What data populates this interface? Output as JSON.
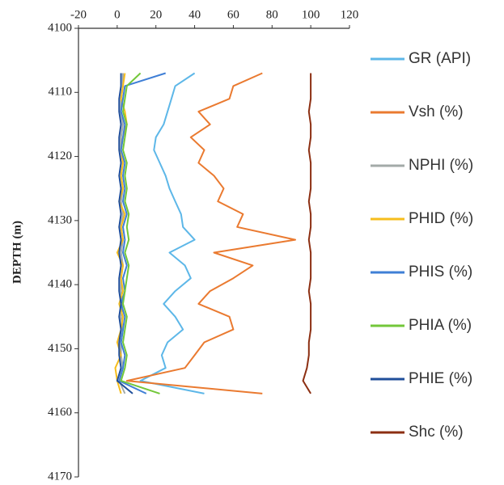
{
  "chart_data": {
    "type": "depth-log",
    "y_label": "DEPTH (m)",
    "depth": [
      4107,
      4109,
      4111,
      4113,
      4115,
      4117,
      4119,
      4121,
      4123,
      4125,
      4127,
      4129,
      4131,
      4133,
      4135,
      4137,
      4139,
      4141,
      4143,
      4145,
      4147,
      4149,
      4151,
      4153,
      4155,
      4157
    ],
    "series": [
      {
        "name": "GR (API)",
        "color": "#5db7e8",
        "values": [
          40,
          30,
          28,
          26,
          24,
          20,
          19,
          22,
          25,
          27,
          30,
          33,
          34,
          40,
          27,
          35,
          38,
          30,
          24,
          30,
          34,
          26,
          23,
          25,
          12,
          45
        ]
      },
      {
        "name": "Vsh (%)",
        "color": "#ea7a30",
        "values": [
          75,
          60,
          58,
          42,
          48,
          38,
          45,
          42,
          50,
          55,
          52,
          65,
          62,
          92,
          50,
          70,
          60,
          48,
          42,
          58,
          60,
          45,
          40,
          35,
          5,
          75
        ]
      },
      {
        "name": "NPHI (%)",
        "color": "#a3aaa8",
        "values": [
          3,
          3,
          2,
          2,
          3,
          2,
          2,
          3,
          2,
          3,
          2,
          3,
          2,
          3,
          2,
          3,
          2,
          2,
          3,
          2,
          3,
          2,
          2,
          3,
          1,
          4
        ]
      },
      {
        "name": "PHID (%)",
        "color": "#f6bd1c",
        "values": [
          4,
          3,
          2,
          4,
          5,
          3,
          2,
          3,
          2,
          3,
          1,
          4,
          2,
          3,
          0,
          3,
          2,
          3,
          1,
          3,
          2,
          0,
          2,
          -1,
          0,
          2
        ]
      },
      {
        "name": "PHIS (%)",
        "color": "#3f7fd6",
        "values": [
          25,
          4,
          3,
          2,
          4,
          3,
          2,
          4,
          3,
          4,
          3,
          5,
          3,
          4,
          3,
          5,
          3,
          4,
          2,
          4,
          3,
          2,
          4,
          3,
          1,
          15
        ]
      },
      {
        "name": "PHIA (%)",
        "color": "#73c73a",
        "values": [
          12,
          5,
          4,
          3,
          5,
          4,
          3,
          5,
          4,
          5,
          4,
          6,
          5,
          6,
          4,
          6,
          5,
          4,
          3,
          5,
          4,
          3,
          5,
          4,
          2,
          22
        ]
      },
      {
        "name": "PHIE (%)",
        "color": "#1f4e9a",
        "values": [
          2,
          2,
          1,
          1,
          2,
          1,
          1,
          2,
          1,
          2,
          1,
          2,
          1,
          2,
          1,
          2,
          1,
          1,
          2,
          1,
          2,
          1,
          1,
          2,
          0,
          8
        ]
      },
      {
        "name": "Shc (%)",
        "color": "#8c2f12",
        "values": [
          100,
          100,
          100,
          99,
          100,
          100,
          99,
          100,
          100,
          100,
          99,
          100,
          100,
          99,
          100,
          100,
          100,
          99,
          100,
          100,
          100,
          99,
          99,
          98,
          96,
          100
        ]
      }
    ],
    "xlim": [
      -20,
      120
    ],
    "xticks": [
      -20,
      0,
      20,
      40,
      60,
      80,
      100,
      120
    ],
    "ylim": [
      4100,
      4170
    ],
    "yticks": [
      4100,
      4110,
      4120,
      4130,
      4140,
      4150,
      4160,
      4170
    ],
    "grid": false
  }
}
